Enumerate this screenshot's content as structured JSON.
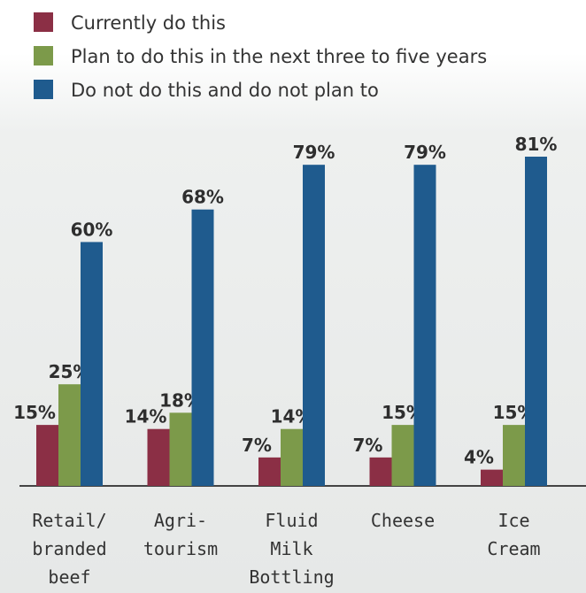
{
  "chart_data": {
    "type": "bar",
    "categories": [
      [
        "Retail/",
        "branded",
        "beef"
      ],
      [
        "Agri-",
        "tourism"
      ],
      [
        "Fluid",
        "Milk",
        "Bottling"
      ],
      [
        "Cheese"
      ],
      [
        "Ice",
        "Cream"
      ]
    ],
    "series": [
      {
        "name": "Currently do this",
        "color": "#8b2f45",
        "values": [
          15,
          14,
          7,
          7,
          4
        ],
        "labels": [
          "15%",
          "14%",
          "7%",
          "7%",
          "4%"
        ]
      },
      {
        "name": "Plan to do this in the next three to five years",
        "color": "#7c9a4a",
        "values": [
          25,
          18,
          14,
          15,
          15
        ],
        "labels": [
          "25%",
          "18%",
          "14%",
          "15%",
          "15%"
        ]
      },
      {
        "name": "Do not do this and do not plan to",
        "color": "#1f5b8e",
        "values": [
          60,
          68,
          79,
          79,
          81
        ],
        "labels": [
          "60%",
          "68%",
          "79%",
          "79%",
          "81%"
        ]
      }
    ],
    "ylim": [
      0,
      81
    ],
    "grid": false,
    "legend_position": "top-left",
    "axis_color": "#444444"
  }
}
